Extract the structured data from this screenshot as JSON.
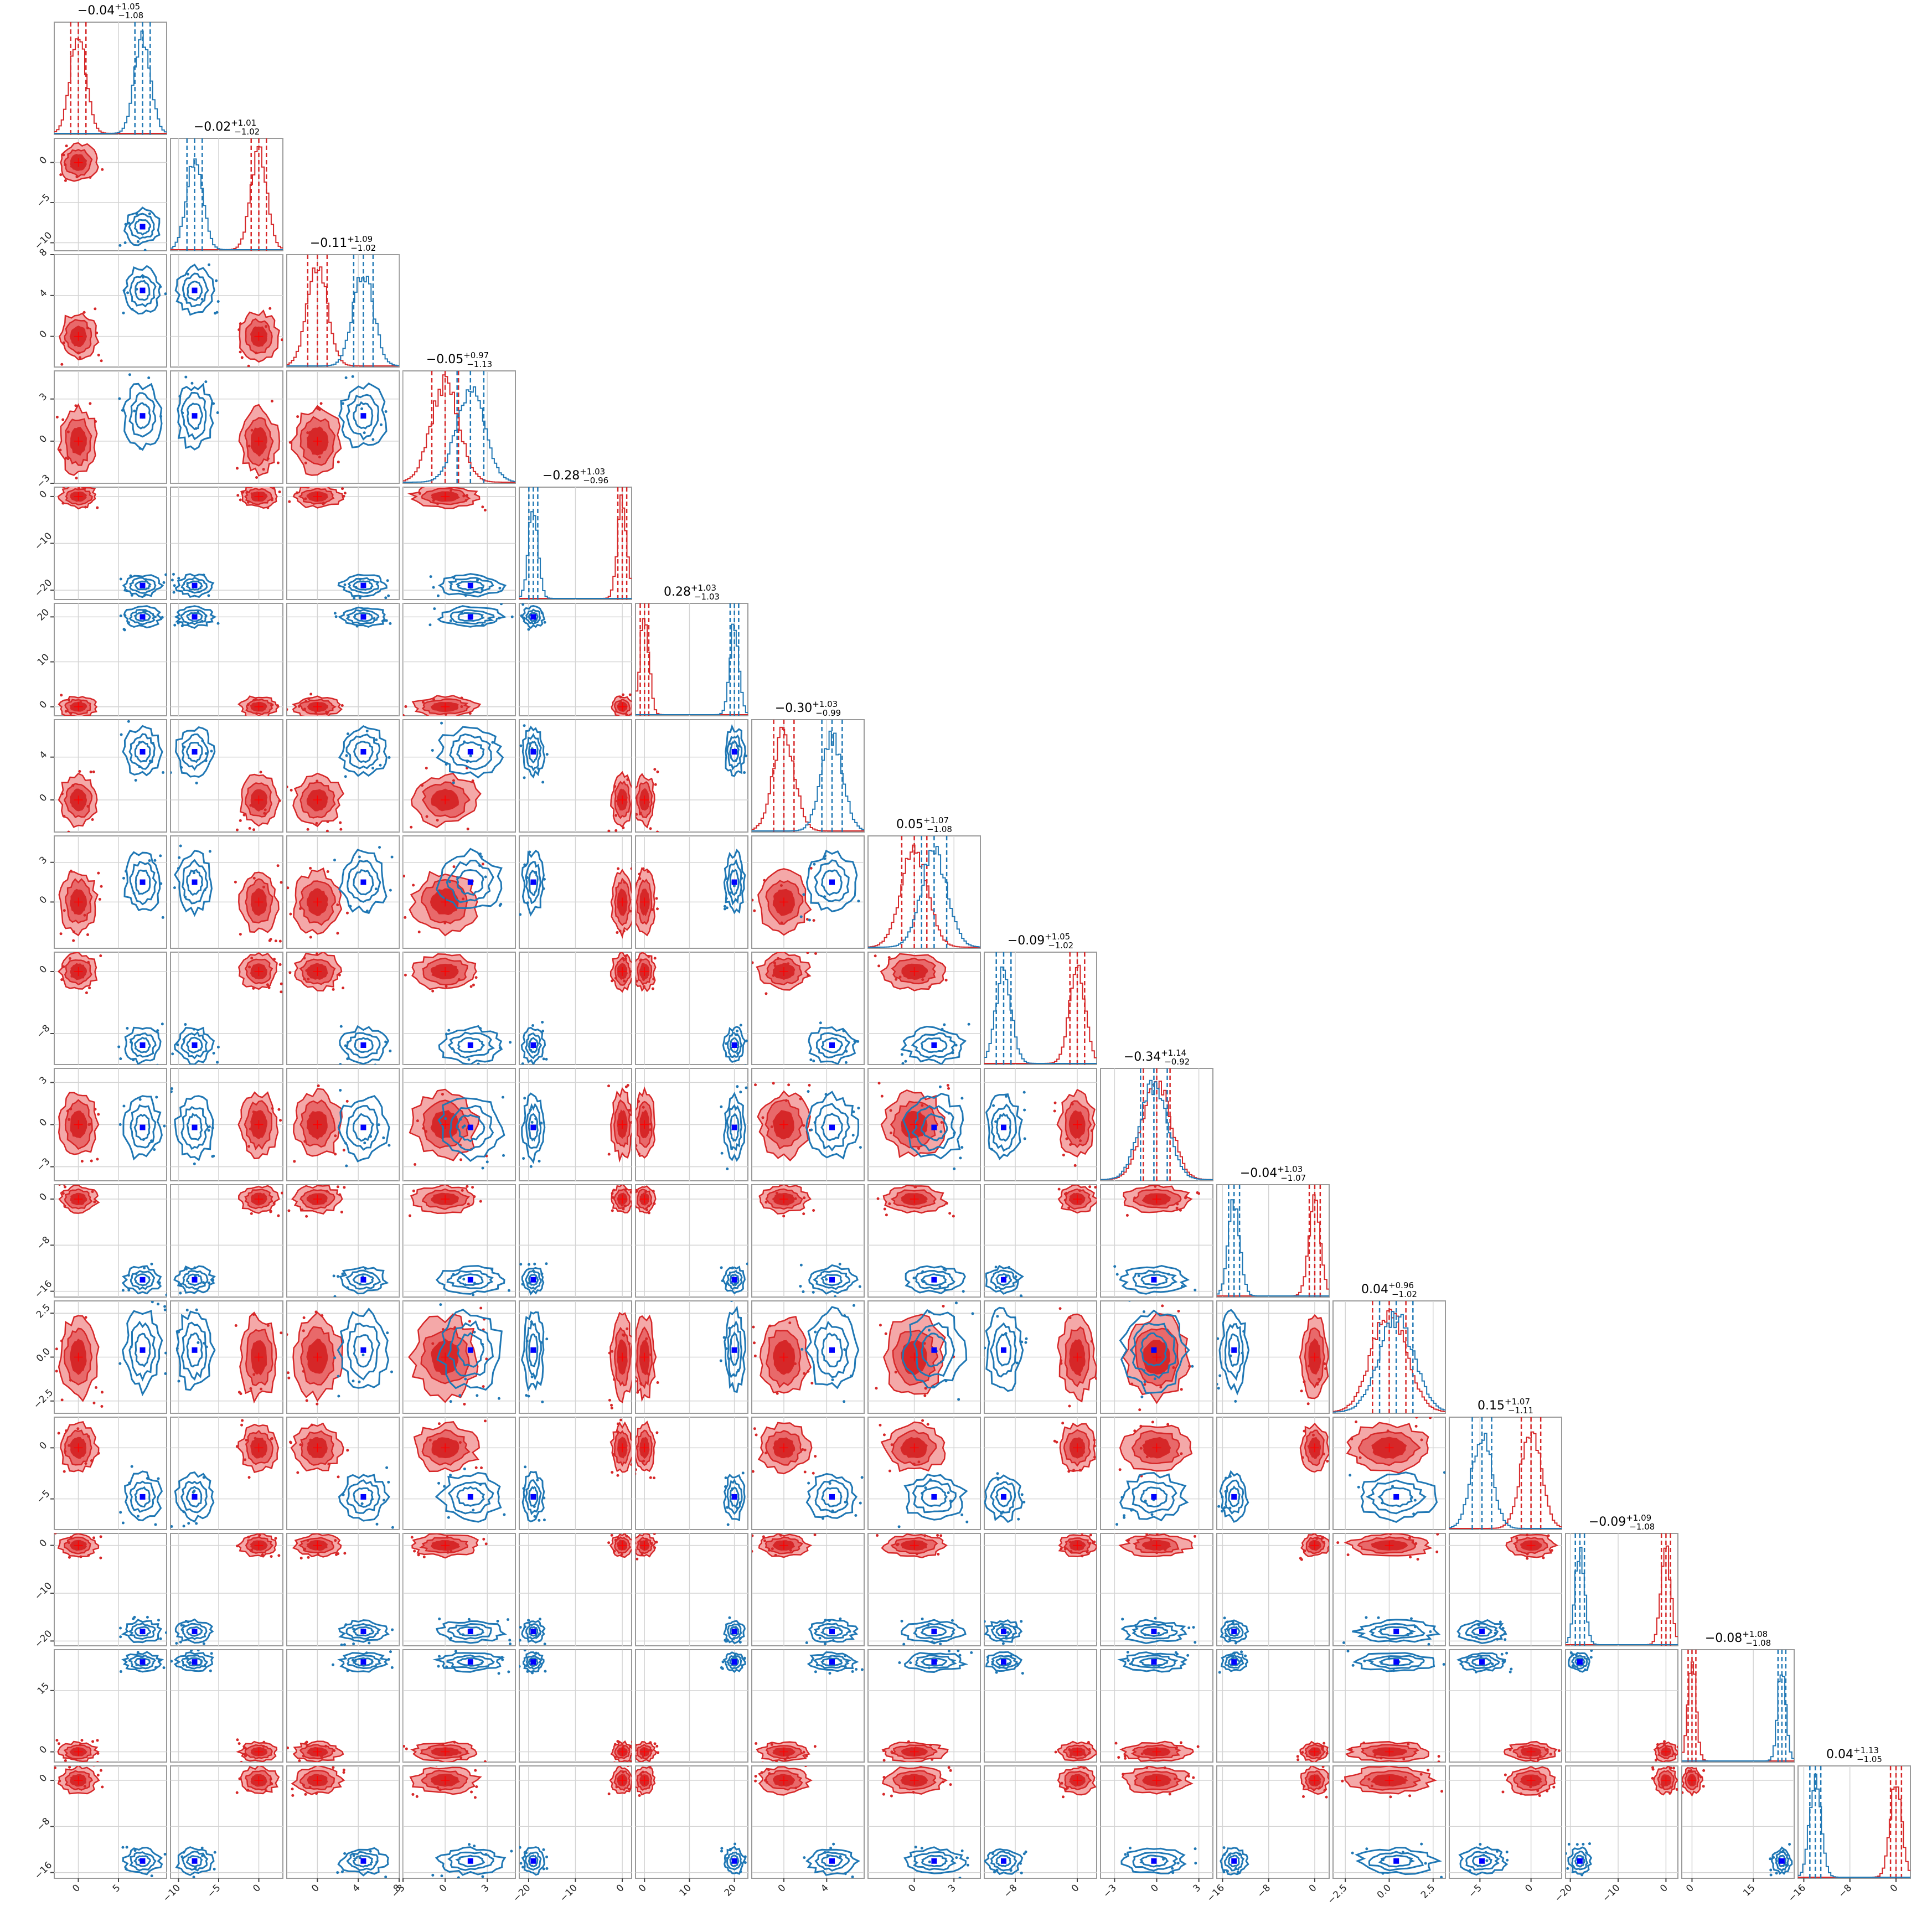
{
  "chart_data": {
    "type": "corner",
    "n_params": 16,
    "series": [
      {
        "name": "",
        "color": "#d62728",
        "role": "filled contours / histogram"
      },
      {
        "name": "",
        "color": "#1f77b4",
        "role": "line contours / histogram"
      }
    ],
    "truth_marker_color": "#0000ff",
    "params": [
      {
        "title": {
          "median": "−0.04",
          "plus": "+1.05",
          "minus": "−1.08"
        },
        "red": {
          "mean": 0,
          "sd": 1
        },
        "blue": {
          "mean": 8,
          "sd": 1
        },
        "lim": [
          -3,
          11
        ],
        "ticks": [
          0,
          5
        ],
        "tick_labels": [
          "0",
          "5"
        ]
      },
      {
        "title": {
          "median": "−0.02",
          "plus": "+1.01",
          "minus": "−1.02"
        },
        "red": {
          "mean": 0,
          "sd": 1
        },
        "blue": {
          "mean": -8,
          "sd": 1
        },
        "lim": [
          -11,
          3
        ],
        "ticks": [
          -10,
          -5,
          0
        ],
        "tick_labels": [
          "−10",
          "−5",
          "0"
        ]
      },
      {
        "title": {
          "median": "−0.11",
          "plus": "+1.09",
          "minus": "−1.02"
        },
        "red": {
          "mean": 0,
          "sd": 1
        },
        "blue": {
          "mean": 4.5,
          "sd": 1
        },
        "lim": [
          -3,
          8
        ],
        "ticks": [
          0,
          4,
          8
        ],
        "tick_labels": [
          "0",
          "4",
          "8"
        ]
      },
      {
        "title": {
          "median": "−0.05",
          "plus": "+0.97",
          "minus": "−1.13"
        },
        "red": {
          "mean": 0,
          "sd": 1
        },
        "blue": {
          "mean": 1.8,
          "sd": 1
        },
        "lim": [
          -3,
          5
        ],
        "ticks": [
          -3,
          0,
          3
        ],
        "tick_labels": [
          "−3",
          "0",
          "3"
        ]
      },
      {
        "title": {
          "median": "−0.28",
          "plus": "+1.03",
          "minus": "−0.96"
        },
        "red": {
          "mean": 0,
          "sd": 1
        },
        "blue": {
          "mean": -19,
          "sd": 1
        },
        "lim": [
          -22,
          2
        ],
        "ticks": [
          -20,
          -10,
          0
        ],
        "tick_labels": [
          "−20",
          "−10",
          "0"
        ]
      },
      {
        "title": {
          "median": "0.28",
          "plus": "+1.03",
          "minus": "−1.03"
        },
        "red": {
          "mean": 0,
          "sd": 1
        },
        "blue": {
          "mean": 20,
          "sd": 1
        },
        "lim": [
          -2,
          23
        ],
        "ticks": [
          0,
          10,
          20
        ],
        "tick_labels": [
          "0",
          "10",
          "20"
        ]
      },
      {
        "title": {
          "median": "−0.30",
          "plus": "+1.03",
          "minus": "−0.99"
        },
        "red": {
          "mean": 0,
          "sd": 1
        },
        "blue": {
          "mean": 4.5,
          "sd": 1
        },
        "lim": [
          -3,
          7.5
        ],
        "ticks": [
          0,
          4
        ],
        "tick_labels": [
          "0",
          "4"
        ]
      },
      {
        "title": {
          "median": "0.05",
          "plus": "+1.07",
          "minus": "−1.08"
        },
        "red": {
          "mean": 0,
          "sd": 1
        },
        "blue": {
          "mean": 1.5,
          "sd": 1
        },
        "lim": [
          -3.5,
          5
        ],
        "ticks": [
          0,
          3
        ],
        "tick_labels": [
          "0",
          "3"
        ]
      },
      {
        "title": {
          "median": "−0.09",
          "plus": "+1.05",
          "minus": "−1.02"
        },
        "red": {
          "mean": 0,
          "sd": 1
        },
        "blue": {
          "mean": -9.5,
          "sd": 1
        },
        "lim": [
          -12,
          2.5
        ],
        "ticks": [
          -8,
          0
        ],
        "tick_labels": [
          "−8",
          "0"
        ]
      },
      {
        "title": {
          "median": "−0.34",
          "plus": "+1.14",
          "minus": "−0.92"
        },
        "red": {
          "mean": 0,
          "sd": 1
        },
        "blue": {
          "mean": -0.2,
          "sd": 1
        },
        "lim": [
          -4,
          4
        ],
        "ticks": [
          -3,
          0,
          3
        ],
        "tick_labels": [
          "−3",
          "0",
          "3"
        ]
      },
      {
        "title": {
          "median": "−0.04",
          "plus": "+1.03",
          "minus": "−1.07"
        },
        "red": {
          "mean": 0,
          "sd": 1
        },
        "blue": {
          "mean": -14,
          "sd": 1
        },
        "lim": [
          -17,
          2.5
        ],
        "ticks": [
          -16,
          -8,
          0
        ],
        "tick_labels": [
          "−16",
          "−8",
          "0"
        ]
      },
      {
        "title": {
          "median": "0.04",
          "plus": "+0.96",
          "minus": "−1.02"
        },
        "red": {
          "mean": 0,
          "sd": 1
        },
        "blue": {
          "mean": 0.4,
          "sd": 1
        },
        "lim": [
          -3.2,
          3.2
        ],
        "ticks": [
          -2.5,
          0,
          2.5
        ],
        "tick_labels": [
          "−2.5",
          "0.0",
          "2.5"
        ]
      },
      {
        "title": {
          "median": "0.15",
          "plus": "+1.07",
          "minus": "−1.11"
        },
        "red": {
          "mean": 0,
          "sd": 1
        },
        "blue": {
          "mean": -4.8,
          "sd": 1
        },
        "lim": [
          -8,
          3
        ],
        "ticks": [
          -5,
          0
        ],
        "tick_labels": [
          "−5",
          "0"
        ]
      },
      {
        "title": {
          "median": "−0.09",
          "plus": "+1.09",
          "minus": "−1.08"
        },
        "red": {
          "mean": 0,
          "sd": 1
        },
        "blue": {
          "mean": -18,
          "sd": 1
        },
        "lim": [
          -21,
          2.5
        ],
        "ticks": [
          -20,
          -10,
          0
        ],
        "tick_labels": [
          "−20",
          "−10",
          "0"
        ]
      },
      {
        "title": {
          "median": "−0.08",
          "plus": "+1.08",
          "minus": "−1.08"
        },
        "red": {
          "mean": 0,
          "sd": 1
        },
        "blue": {
          "mean": 22,
          "sd": 1
        },
        "lim": [
          -2.5,
          25
        ],
        "ticks": [
          0,
          15
        ],
        "tick_labels": [
          "0",
          "15"
        ]
      },
      {
        "title": {
          "median": "0.04",
          "plus": "+1.13",
          "minus": "−1.05"
        },
        "red": {
          "mean": 0,
          "sd": 1
        },
        "blue": {
          "mean": -14,
          "sd": 1
        },
        "lim": [
          -17,
          2.5
        ],
        "ticks": [
          -16,
          -8,
          0
        ],
        "tick_labels": [
          "−16",
          "−8",
          "0"
        ]
      }
    ],
    "grid": true
  }
}
